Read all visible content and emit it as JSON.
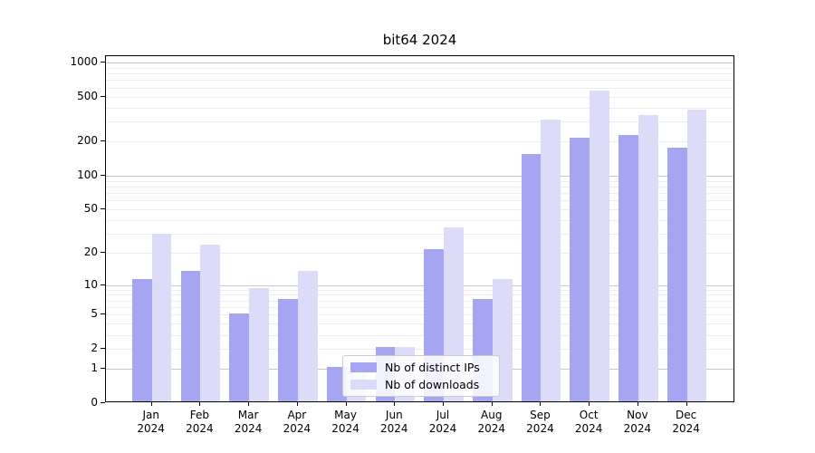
{
  "chart_data": {
    "type": "bar",
    "title": "bit64 2024",
    "categories": [
      "Jan 2024",
      "Feb 2024",
      "Mar 2024",
      "Apr 2024",
      "May 2024",
      "Jun 2024",
      "Jul 2024",
      "Aug 2024",
      "Sep 2024",
      "Oct 2024",
      "Nov 2024",
      "Dec 2024"
    ],
    "series": [
      {
        "name": "Nb of distinct IPs",
        "color": "#a5a5f2",
        "values": [
          11,
          13,
          5,
          7,
          1,
          2,
          21,
          7,
          150,
          210,
          220,
          170
        ]
      },
      {
        "name": "Nb of downloads",
        "color": "#dcdcf8",
        "values": [
          29,
          23,
          9,
          13,
          1,
          2,
          33,
          11,
          300,
          550,
          330,
          370
        ]
      }
    ],
    "xlabel": "",
    "ylabel": "",
    "y_scale": "log10(1+y)",
    "y_ticks": [
      0,
      1,
      2,
      5,
      10,
      20,
      50,
      100,
      200,
      500,
      1000
    ],
    "ylim": [
      0,
      1140
    ],
    "grid": "horizontal, major decades dark + minor light",
    "legend_position": "inside bottom-center",
    "colors": {
      "axis": "#000000",
      "grid_major": "#c6c6c6",
      "grid_minor": "#ededed",
      "legend_border": "#cccccc",
      "legend_background": "rgba(255,255,255,0.85)"
    }
  }
}
